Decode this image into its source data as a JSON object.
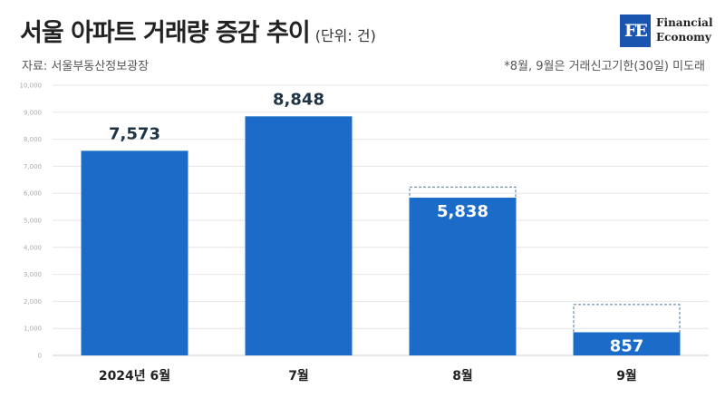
{
  "header": {
    "title": "서울 아파트 거래량 증감 추이",
    "unit": "(단위: 건)",
    "source": "자료: 서울부동산정보광장",
    "note": "*8월, 9월은 거래신고기한(30일) 미도래"
  },
  "logo": {
    "mark": "FE",
    "line1": "Financial",
    "line2": "Economy"
  },
  "colors": {
    "bar": "#1a6cc8",
    "label_dark": "#1f3347",
    "label_light": "#ffffff",
    "projection_border": "#4a7a95",
    "grid": "#e6e6e6"
  },
  "chart_data": {
    "type": "bar",
    "categories": [
      "2024년 6월",
      "7월",
      "8월",
      "9월"
    ],
    "values": [
      7573,
      8848,
      5838,
      857
    ],
    "value_labels": [
      "7,573",
      "8,848",
      "5,838",
      "857"
    ],
    "projected": [
      null,
      null,
      6250,
      1900
    ],
    "ylim": [
      0,
      10000
    ],
    "yticks": [
      0,
      1000,
      2000,
      3000,
      4000,
      5000,
      6000,
      7000,
      8000,
      9000,
      10000
    ],
    "ytick_labels": [
      "0",
      "1,000",
      "2,000",
      "3,000",
      "4,000",
      "5,000",
      "6,000",
      "7,000",
      "8,000",
      "9,000",
      "10,000"
    ],
    "grid": true,
    "legend": "none"
  }
}
